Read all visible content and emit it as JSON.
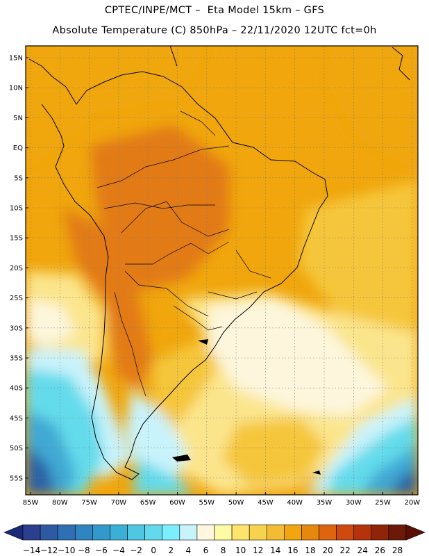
{
  "title": {
    "line1": "CPTEC/INPE/MCT –  Eta Model 15km – GFS",
    "line2": "Absolute Temperature (C) 850hPa – 22/11/2020 12UTC fct=0h"
  },
  "map": {
    "lat_labels": [
      "15N",
      "10N",
      "5N",
      "EQ",
      "5S",
      "10S",
      "15S",
      "20S",
      "25S",
      "30S",
      "35S",
      "40S",
      "45S",
      "50S",
      "55S"
    ],
    "lon_labels": [
      "85W",
      "80W",
      "75W",
      "70W",
      "65W",
      "60W",
      "55W",
      "50W",
      "45W",
      "40W",
      "35W",
      "30W",
      "25W",
      "20W"
    ],
    "field_colors": {
      "hot": "#e27a16",
      "warm": "#f0a60c",
      "mild": "#f5c63a",
      "light": "#fbe58c",
      "pale": "#fdf6dc",
      "cool": "#c9f3fb",
      "cold1": "#63dbeb",
      "cold2": "#3fa9d4",
      "cold3": "#2a62a5"
    }
  },
  "colorbar": {
    "ticks": [
      "-14",
      "-12",
      "-10",
      "-8",
      "-6",
      "-4",
      "-2",
      "0",
      "2",
      "4",
      "6",
      "8",
      "10",
      "12",
      "14",
      "16",
      "18",
      "20",
      "22",
      "24",
      "26",
      "28"
    ],
    "colors": [
      "#2b3f8e",
      "#2d5aa3",
      "#2f6fb3",
      "#3084c0",
      "#3399cc",
      "#3bb0d7",
      "#4fc6e2",
      "#62d9ec",
      "#7cefff",
      "#c9f3fb",
      "#fff8de",
      "#fffaa6",
      "#fde56d",
      "#f7d24f",
      "#f2bd34",
      "#f0a60c",
      "#e6870e",
      "#df6410",
      "#cf4a0e",
      "#b5330b",
      "#8f2408",
      "#6b1a07"
    ],
    "under_color": "#1a2a78",
    "over_color": "#5b0f05"
  }
}
